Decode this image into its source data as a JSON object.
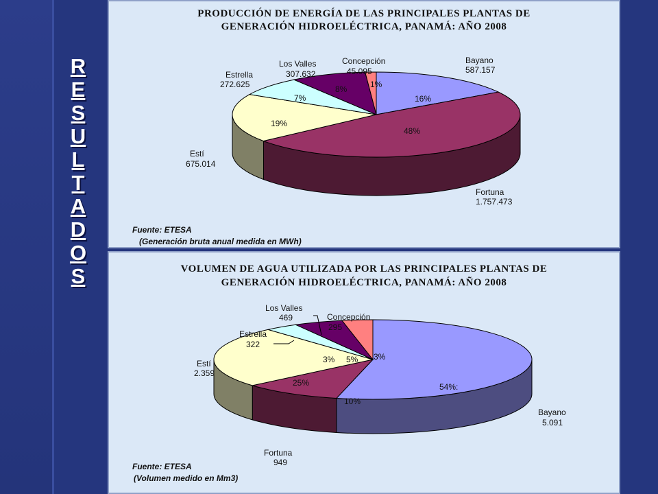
{
  "side_title": "RESULTADOS",
  "chart_data": [
    {
      "type": "pie",
      "title_line1": "PRODUCCIÓN DE ENERGÍA DE LAS PRINCIPALES PLANTAS DE",
      "title_line2": "GENERACIÓN HIDROELÉCTRICA, PANAMÁ:  AÑO 2008",
      "source_line1": "Fuente:  ETESA",
      "source_line2": "(Generación bruta anual medida en MWh)",
      "slices": [
        {
          "name": "Bayano",
          "value": "587.157",
          "percent": "16%",
          "num": 587157,
          "color": "#9999ff"
        },
        {
          "name": "Fortuna",
          "value": "1.757.473",
          "percent": "48%",
          "num": 1757473,
          "color": "#993366"
        },
        {
          "name": "Estí",
          "value": "675.014",
          "percent": "19%",
          "num": 675014,
          "color": "#ffffcc"
        },
        {
          "name": "Estrella",
          "value": "272.625",
          "percent": "7%",
          "num": 272625,
          "color": "#ccffff"
        },
        {
          "name": "Los Valles",
          "value": "307.632",
          "percent": "8%",
          "num": 307632,
          "color": "#660066"
        },
        {
          "name": "Concepción",
          "value": "45.095",
          "percent": "1%",
          "num": 45095,
          "color": "#ff8080"
        }
      ]
    },
    {
      "type": "pie",
      "title_line1": "VOLUMEN DE AGUA UTILIZADA POR LAS PRINCIPALES PLANTAS DE",
      "title_line2": "GENERACIÓN HIDROELÉCTRICA, PANAMÁ:  AÑO 2008",
      "source_line1": "Fuente:  ETESA",
      "source_line2": "(Volumen medido en Mm3)",
      "slices": [
        {
          "name": "Bayano",
          "value": "5.091",
          "percent": "54%:",
          "num": 5091,
          "color": "#9999ff"
        },
        {
          "name": "Fortuna",
          "value": "949",
          "percent": "10%",
          "num": 949,
          "color": "#993366"
        },
        {
          "name": "Estí",
          "value": "2.359",
          "percent": "25%",
          "num": 2359,
          "color": "#ffffcc"
        },
        {
          "name": "Estrella",
          "value": "322",
          "percent": "3%",
          "num": 322,
          "color": "#ccffff"
        },
        {
          "name": "Los Valles",
          "value": "469",
          "percent": "5%",
          "num": 469,
          "color": "#660066"
        },
        {
          "name": "Concepción",
          "value": "295",
          "percent": "3%",
          "num": 295,
          "color": "#ff8080"
        }
      ]
    }
  ]
}
